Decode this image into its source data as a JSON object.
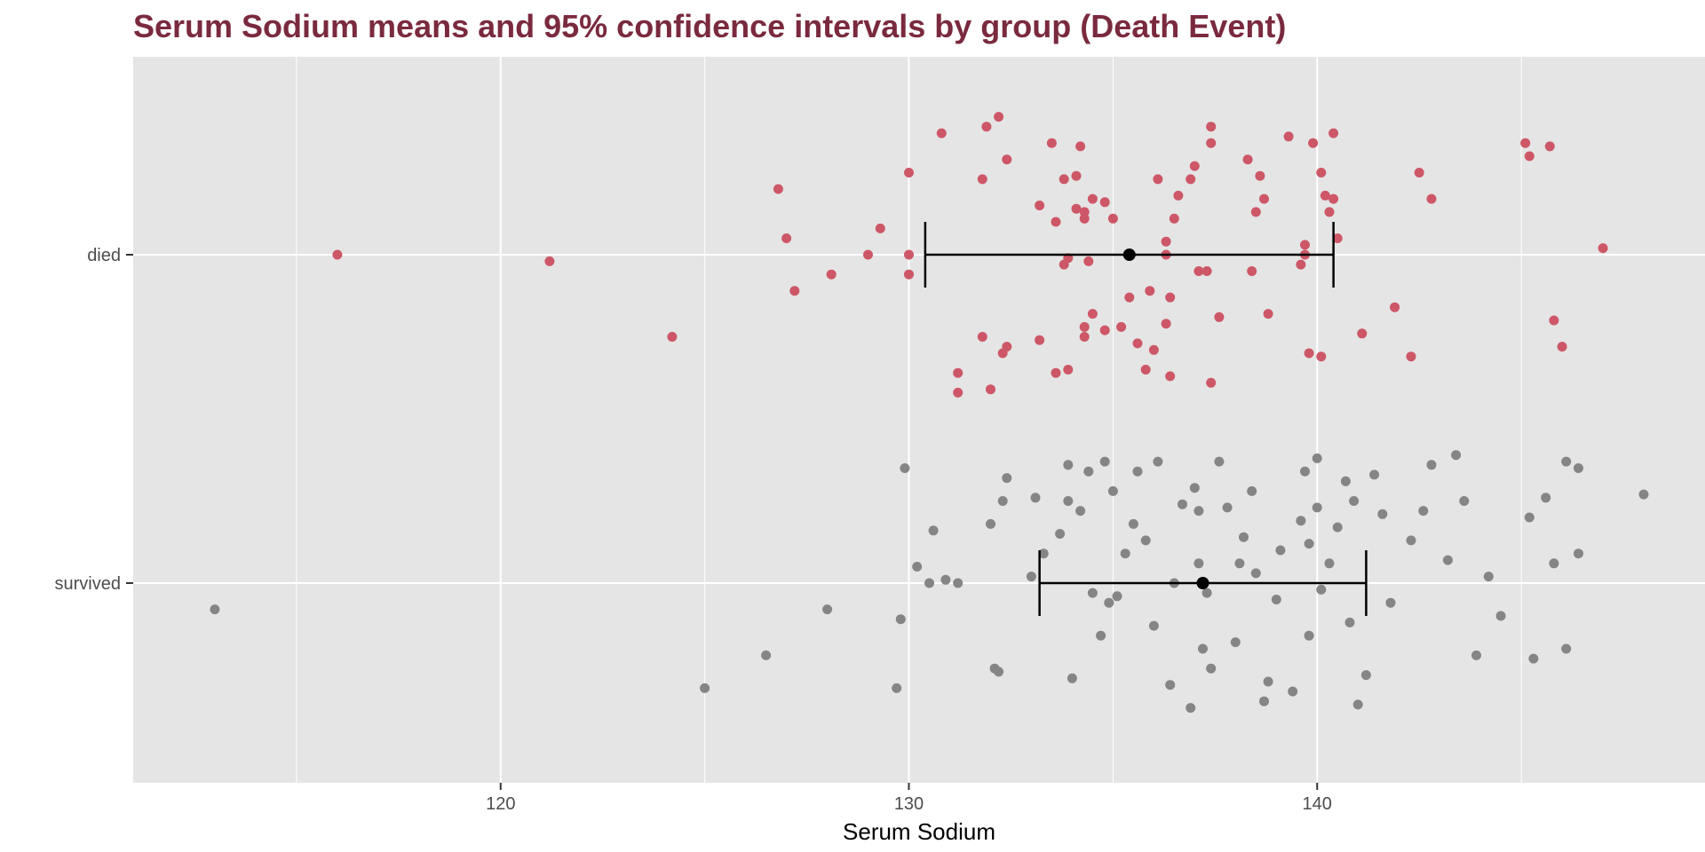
{
  "colors": {
    "title": "#7a2a3e",
    "panel": "#e5e5e5",
    "grid": "#ffffff",
    "died": "#cd5767",
    "survived": "#858585",
    "ci": "#000000"
  },
  "chart_data": {
    "type": "scatter",
    "title": "Serum Sodium means and 95% confidence intervals by group (Death Event)",
    "xlabel": "Serum Sodium",
    "ylabel": "",
    "xlim": [
      111,
      149.5
    ],
    "x_ticks": [
      120,
      130,
      140
    ],
    "x_minor_ticks": [
      115,
      125,
      135,
      145
    ],
    "categories": [
      "died",
      "survived"
    ],
    "grid": true,
    "legend": "none",
    "series": [
      {
        "category": "died",
        "color": "#cd5767",
        "points": [
          [
            116.0,
            0.0
          ],
          [
            121.2,
            -0.02
          ],
          [
            124.2,
            -0.25
          ],
          [
            126.8,
            0.2
          ],
          [
            127.0,
            0.05
          ],
          [
            127.2,
            -0.11
          ],
          [
            128.1,
            -0.06
          ],
          [
            129.0,
            0.0
          ],
          [
            129.3,
            0.08
          ],
          [
            130.0,
            0.25
          ],
          [
            130.0,
            -0.06
          ],
          [
            130.0,
            0.0
          ],
          [
            130.8,
            0.37
          ],
          [
            131.2,
            -0.36
          ],
          [
            131.2,
            -0.42
          ],
          [
            131.8,
            -0.25
          ],
          [
            131.8,
            0.23
          ],
          [
            131.9,
            0.39
          ],
          [
            132.0,
            -0.41
          ],
          [
            132.2,
            0.42
          ],
          [
            132.3,
            -0.3
          ],
          [
            132.4,
            -0.28
          ],
          [
            132.4,
            0.29
          ],
          [
            133.2,
            0.15
          ],
          [
            133.2,
            -0.26
          ],
          [
            133.5,
            0.34
          ],
          [
            133.6,
            -0.36
          ],
          [
            133.6,
            0.1
          ],
          [
            133.8,
            -0.03
          ],
          [
            133.8,
            0.23
          ],
          [
            133.9,
            -0.01
          ],
          [
            133.9,
            -0.35
          ],
          [
            134.1,
            0.14
          ],
          [
            134.1,
            0.24
          ],
          [
            134.2,
            0.33
          ],
          [
            134.3,
            -0.22
          ],
          [
            134.3,
            -0.25
          ],
          [
            134.3,
            0.11
          ],
          [
            134.3,
            0.13
          ],
          [
            134.4,
            -0.02
          ],
          [
            134.5,
            -0.18
          ],
          [
            134.5,
            0.17
          ],
          [
            134.8,
            -0.23
          ],
          [
            134.8,
            0.16
          ],
          [
            135.0,
            0.11
          ],
          [
            135.2,
            -0.22
          ],
          [
            135.4,
            -0.13
          ],
          [
            135.6,
            -0.27
          ],
          [
            135.8,
            -0.35
          ],
          [
            135.9,
            -0.11
          ],
          [
            136.0,
            -0.29
          ],
          [
            136.1,
            0.23
          ],
          [
            136.3,
            -0.21
          ],
          [
            136.3,
            0.04
          ],
          [
            136.3,
            0.0
          ],
          [
            136.4,
            -0.13
          ],
          [
            136.4,
            -0.37
          ],
          [
            136.5,
            0.11
          ],
          [
            136.6,
            0.18
          ],
          [
            136.9,
            0.23
          ],
          [
            137.0,
            0.27
          ],
          [
            137.1,
            -0.05
          ],
          [
            137.3,
            -0.05
          ],
          [
            137.4,
            0.34
          ],
          [
            137.4,
            0.39
          ],
          [
            137.4,
            -0.39
          ],
          [
            137.6,
            -0.19
          ],
          [
            138.3,
            0.29
          ],
          [
            138.4,
            -0.05
          ],
          [
            138.5,
            0.13
          ],
          [
            138.6,
            0.24
          ],
          [
            138.7,
            0.17
          ],
          [
            138.8,
            -0.18
          ],
          [
            139.3,
            0.36
          ],
          [
            139.6,
            -0.03
          ],
          [
            139.7,
            0.0
          ],
          [
            139.7,
            0.03
          ],
          [
            139.8,
            -0.3
          ],
          [
            139.9,
            0.34
          ],
          [
            140.1,
            -0.31
          ],
          [
            140.1,
            0.25
          ],
          [
            140.2,
            0.18
          ],
          [
            140.3,
            0.13
          ],
          [
            140.4,
            0.17
          ],
          [
            140.4,
            0.37
          ],
          [
            140.5,
            0.05
          ],
          [
            141.1,
            -0.24
          ],
          [
            141.9,
            -0.16
          ],
          [
            142.3,
            -0.31
          ],
          [
            142.5,
            0.25
          ],
          [
            142.8,
            0.17
          ],
          [
            145.1,
            0.34
          ],
          [
            145.2,
            0.3
          ],
          [
            145.7,
            0.33
          ],
          [
            145.8,
            -0.2
          ],
          [
            146.0,
            -0.28
          ],
          [
            147.0,
            0.02
          ]
        ]
      },
      {
        "category": "survived",
        "color": "#858585",
        "points": [
          [
            113.0,
            -0.08
          ],
          [
            125.0,
            -0.32
          ],
          [
            126.5,
            -0.22
          ],
          [
            128.0,
            -0.08
          ],
          [
            129.7,
            -0.32
          ],
          [
            129.8,
            -0.11
          ],
          [
            129.9,
            0.35
          ],
          [
            130.2,
            0.05
          ],
          [
            130.5,
            0.0
          ],
          [
            130.6,
            0.16
          ],
          [
            130.9,
            0.01
          ],
          [
            131.2,
            0.0
          ],
          [
            132.0,
            0.18
          ],
          [
            132.1,
            -0.26
          ],
          [
            132.2,
            -0.27
          ],
          [
            132.3,
            0.25
          ],
          [
            132.4,
            0.32
          ],
          [
            133.0,
            0.02
          ],
          [
            133.1,
            0.26
          ],
          [
            133.3,
            0.09
          ],
          [
            133.7,
            0.15
          ],
          [
            133.9,
            0.25
          ],
          [
            133.9,
            0.36
          ],
          [
            134.0,
            -0.29
          ],
          [
            134.2,
            0.22
          ],
          [
            134.4,
            0.34
          ],
          [
            134.5,
            -0.03
          ],
          [
            134.7,
            -0.16
          ],
          [
            134.8,
            0.37
          ],
          [
            134.9,
            -0.06
          ],
          [
            135.0,
            0.28
          ],
          [
            135.1,
            -0.04
          ],
          [
            135.3,
            0.09
          ],
          [
            135.5,
            0.18
          ],
          [
            135.6,
            0.34
          ],
          [
            135.8,
            0.13
          ],
          [
            136.0,
            -0.13
          ],
          [
            136.1,
            0.37
          ],
          [
            136.4,
            -0.31
          ],
          [
            136.5,
            0.0
          ],
          [
            136.7,
            0.24
          ],
          [
            136.9,
            -0.38
          ],
          [
            137.0,
            0.29
          ],
          [
            137.1,
            0.06
          ],
          [
            137.1,
            0.22
          ],
          [
            137.2,
            -0.2
          ],
          [
            137.3,
            -0.03
          ],
          [
            137.4,
            -0.26
          ],
          [
            137.6,
            0.37
          ],
          [
            137.8,
            0.23
          ],
          [
            138.0,
            -0.18
          ],
          [
            138.1,
            0.06
          ],
          [
            138.2,
            0.14
          ],
          [
            138.4,
            0.28
          ],
          [
            138.5,
            0.03
          ],
          [
            138.7,
            -0.36
          ],
          [
            138.8,
            -0.3
          ],
          [
            139.0,
            -0.05
          ],
          [
            139.1,
            0.1
          ],
          [
            139.4,
            -0.33
          ],
          [
            139.6,
            0.19
          ],
          [
            139.7,
            0.34
          ],
          [
            139.8,
            0.12
          ],
          [
            139.8,
            -0.16
          ],
          [
            140.0,
            0.23
          ],
          [
            140.0,
            0.38
          ],
          [
            140.1,
            -0.02
          ],
          [
            140.3,
            0.06
          ],
          [
            140.5,
            0.17
          ],
          [
            140.7,
            0.31
          ],
          [
            140.8,
            -0.12
          ],
          [
            140.9,
            0.25
          ],
          [
            141.0,
            -0.37
          ],
          [
            141.2,
            -0.28
          ],
          [
            141.4,
            0.33
          ],
          [
            141.6,
            0.21
          ],
          [
            141.8,
            -0.06
          ],
          [
            142.3,
            0.13
          ],
          [
            142.6,
            0.22
          ],
          [
            142.8,
            0.36
          ],
          [
            143.2,
            0.07
          ],
          [
            143.4,
            0.39
          ],
          [
            143.6,
            0.25
          ],
          [
            143.9,
            -0.22
          ],
          [
            144.2,
            0.02
          ],
          [
            144.5,
            -0.1
          ],
          [
            145.2,
            0.2
          ],
          [
            145.3,
            -0.23
          ],
          [
            145.6,
            0.26
          ],
          [
            145.8,
            0.06
          ],
          [
            146.1,
            0.37
          ],
          [
            146.1,
            -0.2
          ],
          [
            146.4,
            0.35
          ],
          [
            146.4,
            0.09
          ],
          [
            148.0,
            0.27
          ]
        ]
      }
    ],
    "intervals": [
      {
        "category": "died",
        "mean": 135.4,
        "lower": 130.4,
        "upper": 140.4
      },
      {
        "category": "survived",
        "mean": 137.2,
        "lower": 133.2,
        "upper": 141.2
      }
    ]
  }
}
